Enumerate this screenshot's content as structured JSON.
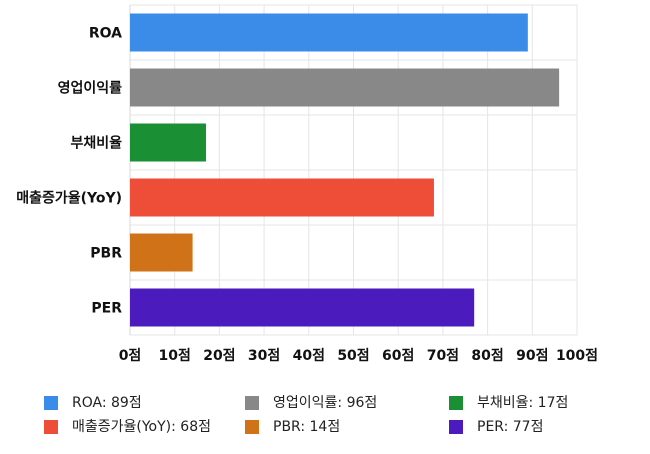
{
  "chart_data": {
    "type": "bar",
    "orientation": "horizontal",
    "categories": [
      "ROA",
      "영업이익률",
      "부채비율",
      "매출증가율(YoY)",
      "PBR",
      "PER"
    ],
    "values": [
      89,
      96,
      17,
      68,
      14,
      77
    ],
    "colors": [
      "#3b8ce8",
      "#888888",
      "#1a8f34",
      "#ee4d38",
      "#cf7218",
      "#4b1bbd"
    ],
    "xlim": [
      0,
      100
    ],
    "x_tick_labels": [
      "0점",
      "10점",
      "20점",
      "30점",
      "40점",
      "50점",
      "60점",
      "70점",
      "80점",
      "90점",
      "100점"
    ],
    "grid": true,
    "legend_position": "bottom",
    "legend": [
      {
        "label": "ROA: 89점"
      },
      {
        "label": "영업이익률: 96점"
      },
      {
        "label": "부채비율: 17점"
      },
      {
        "label": "매출증가율(YoY): 68점"
      },
      {
        "label": "PBR: 14점"
      },
      {
        "label": "PER: 77점"
      }
    ]
  }
}
